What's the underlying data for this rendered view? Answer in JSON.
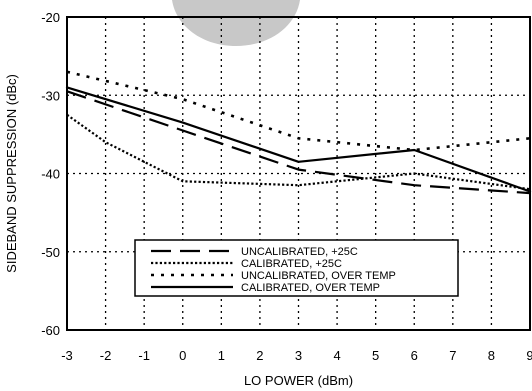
{
  "chart_data": {
    "type": "line",
    "title": "",
    "xlabel": "LO POWER (dBm)",
    "ylabel": "SIDEBAND SUPPRESSION (dBc)",
    "xlim": [
      -3,
      9
    ],
    "ylim": [
      -60,
      -20
    ],
    "x_ticks": [
      "-3",
      "-2",
      "-1",
      "0",
      "1",
      "2",
      "3",
      "4",
      "5",
      "6",
      "7",
      "8",
      "9"
    ],
    "y_ticks": [
      "-20",
      "-30",
      "-40",
      "-50",
      "-60"
    ],
    "x_tick_values": [
      -3,
      -2,
      -1,
      0,
      1,
      2,
      3,
      4,
      5,
      6,
      7,
      8,
      9
    ],
    "y_tick_values": [
      -20,
      -30,
      -40,
      -50,
      -60
    ],
    "grid": true,
    "legend_position": "lower-center",
    "series": [
      {
        "name": "UNCALIBRATED, +25C",
        "style": "long-dash",
        "x": [
          -3,
          0,
          3,
          6,
          9
        ],
        "y": [
          -29.5,
          -34.5,
          -39.5,
          -41.5,
          -42.5
        ]
      },
      {
        "name": "CALIBRATED,  +25C",
        "style": "dense-dot",
        "x": [
          -3,
          -2,
          -1,
          0,
          3,
          6,
          9
        ],
        "y": [
          -32.5,
          -36,
          -38.5,
          -41,
          -41.5,
          -40,
          -42
        ]
      },
      {
        "name": "UNCALIBRATED, OVER TEMP",
        "style": "sparse-dot",
        "x": [
          -3,
          0,
          3,
          6,
          9
        ],
        "y": [
          -27,
          -30.5,
          -35.5,
          -37,
          -35.5
        ]
      },
      {
        "name": "CALIBRATED, OVER TEMP",
        "style": "solid",
        "x": [
          -3,
          0,
          3,
          6,
          9
        ],
        "y": [
          -29,
          -33.5,
          -38.5,
          -37,
          -42.3
        ]
      }
    ],
    "colors": {
      "line": "#000000",
      "grid": "#000000",
      "background": "#ffffff",
      "watermark": "#c8c8c8"
    }
  }
}
